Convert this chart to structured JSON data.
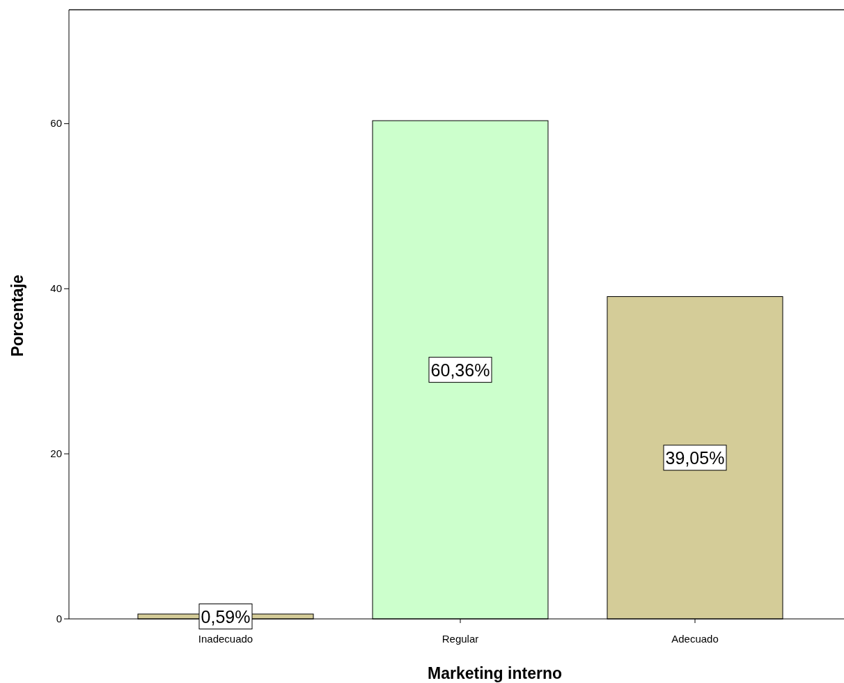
{
  "chart_data": {
    "type": "bar",
    "xlabel": "Marketing interno",
    "ylabel": "Porcentaje",
    "categories": [
      "Inadecuado",
      "Regular",
      "Adecuado"
    ],
    "values": [
      0.59,
      60.36,
      39.05
    ],
    "colors": [
      "#d4cc98",
      "#ccffcc",
      "#d4cc98"
    ],
    "value_labels": [
      "0,59%",
      "60,36%",
      "39,05%"
    ],
    "ylim": [
      0,
      73.8
    ],
    "yticks": [
      0,
      20,
      40,
      60
    ]
  }
}
